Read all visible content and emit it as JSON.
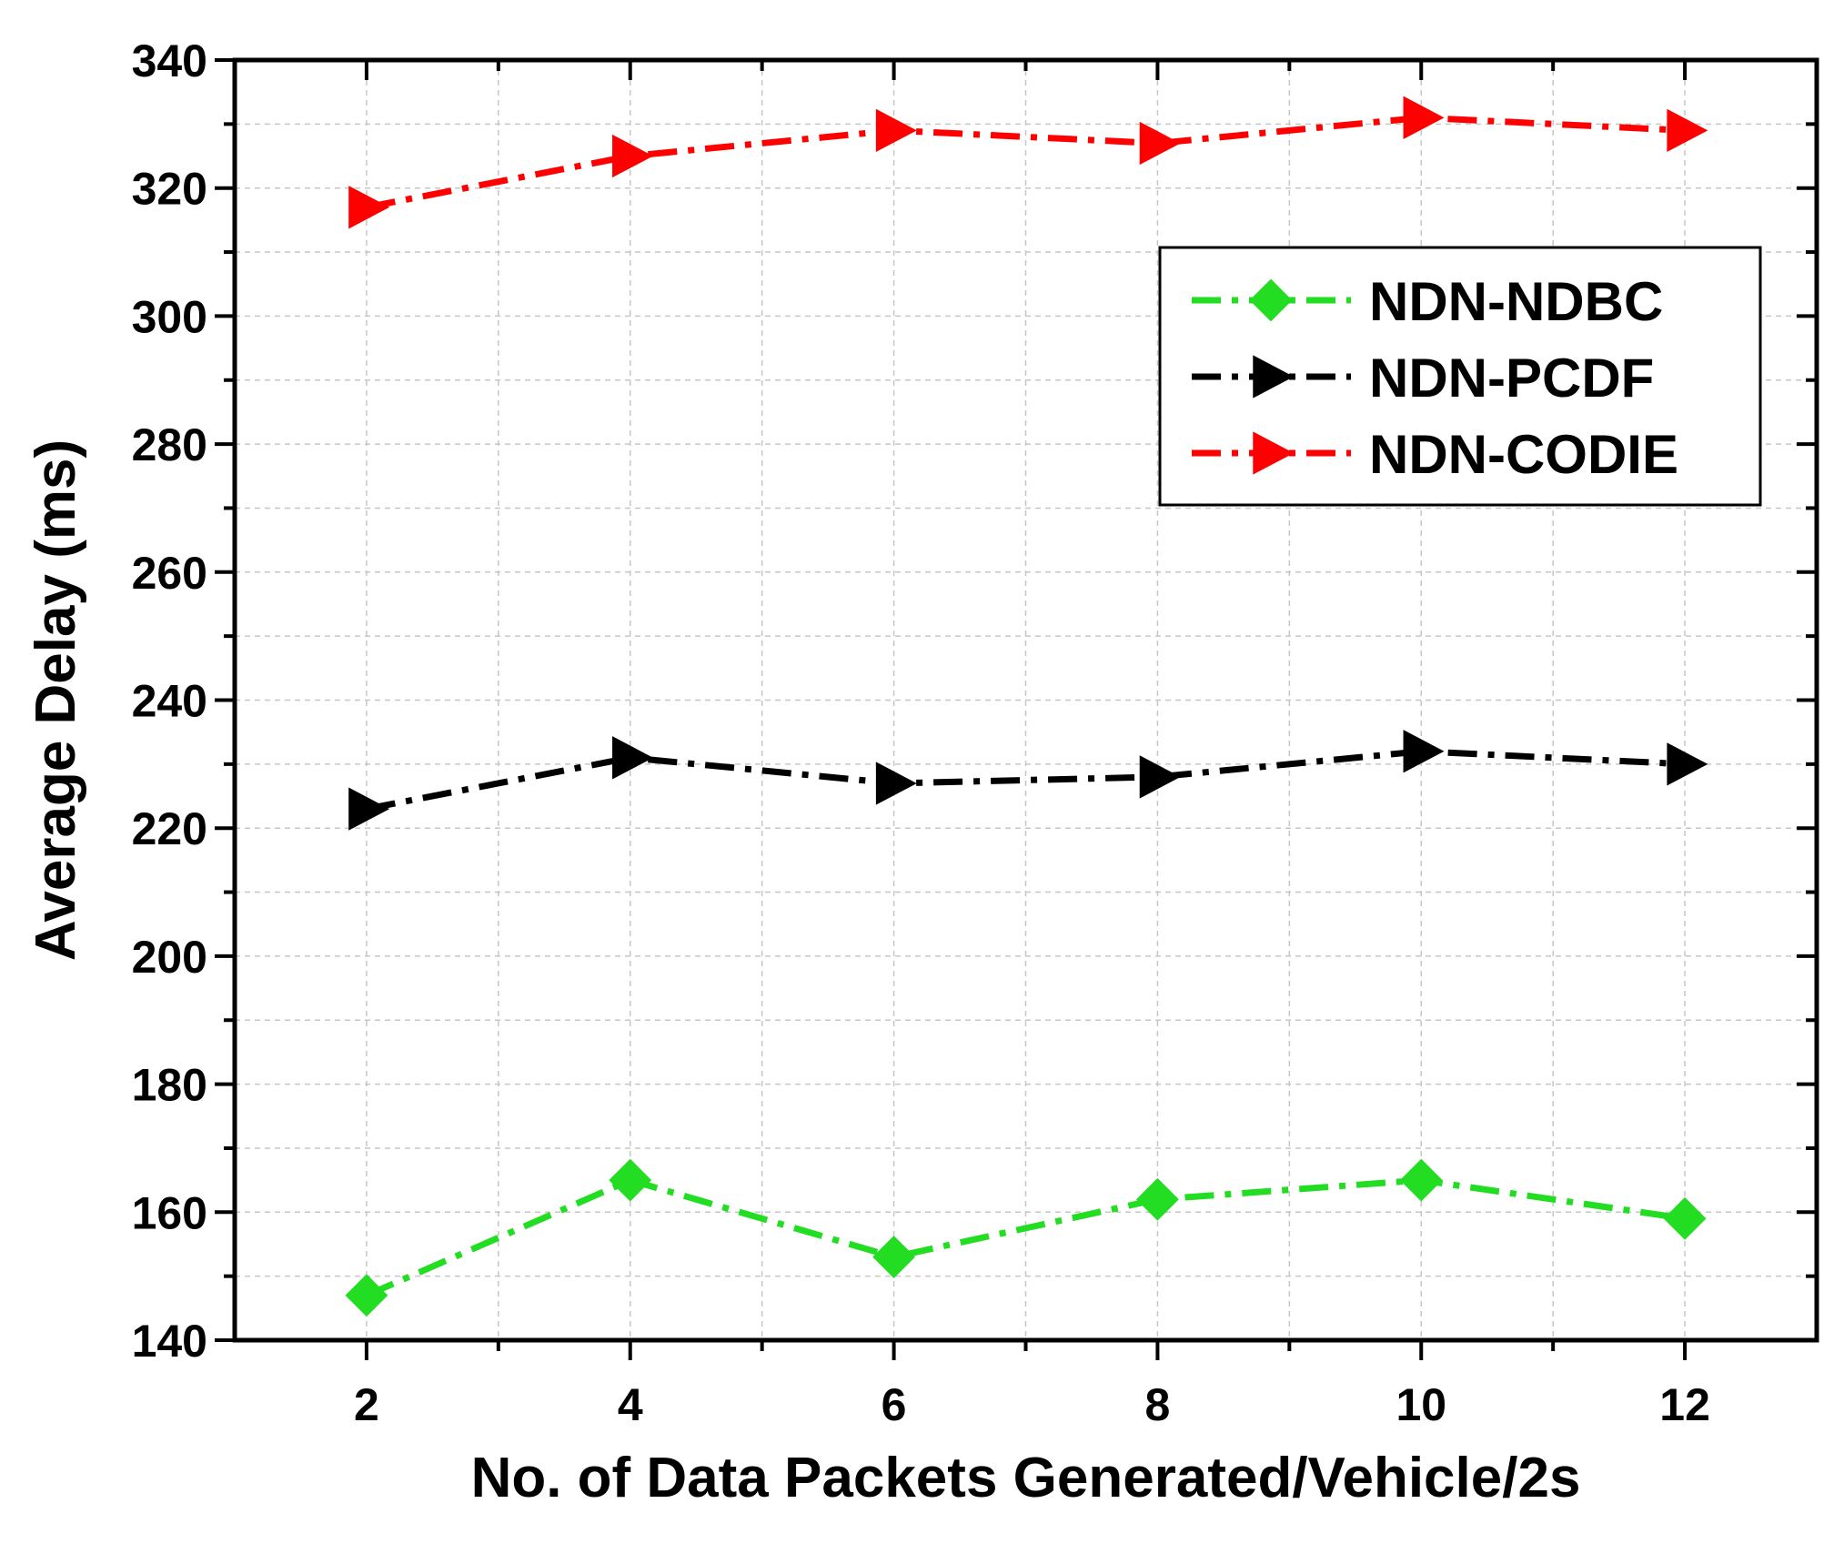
{
  "chart_data": {
    "type": "line",
    "title": "",
    "xlabel": "No. of Data Packets Generated/Vehicle/2s",
    "ylabel": "Average Delay (ms)",
    "xlim": [
      1,
      13
    ],
    "ylim": [
      140,
      340
    ],
    "xticks": [
      2,
      4,
      6,
      8,
      10,
      12
    ],
    "xtick_labels": [
      "2",
      "4",
      "6",
      "8",
      "10",
      "12"
    ],
    "yticks": [
      140,
      160,
      180,
      200,
      220,
      240,
      260,
      280,
      300,
      320,
      340
    ],
    "ytick_labels": [
      "140",
      "160",
      "180",
      "200",
      "220",
      "240",
      "260",
      "280",
      "300",
      "320",
      "340"
    ],
    "grid": true,
    "legend_position": "upper-right",
    "x": [
      2,
      4,
      6,
      8,
      10,
      12
    ],
    "series": [
      {
        "name": "NDN-NDBC",
        "values": [
          147,
          165,
          153,
          162,
          165,
          159
        ],
        "color": "#22dd22",
        "marker": "diamond",
        "line_style": "dash-dot"
      },
      {
        "name": "NDN-PCDF",
        "values": [
          223,
          231,
          227,
          228,
          232,
          230
        ],
        "color": "#000000",
        "marker": "triangle-right",
        "line_style": "dash-dot"
      },
      {
        "name": "NDN-CODIE",
        "values": [
          317,
          325,
          329,
          327,
          331,
          329
        ],
        "color": "#ff0000",
        "marker": "triangle-right",
        "line_style": "dash-dot"
      }
    ]
  }
}
